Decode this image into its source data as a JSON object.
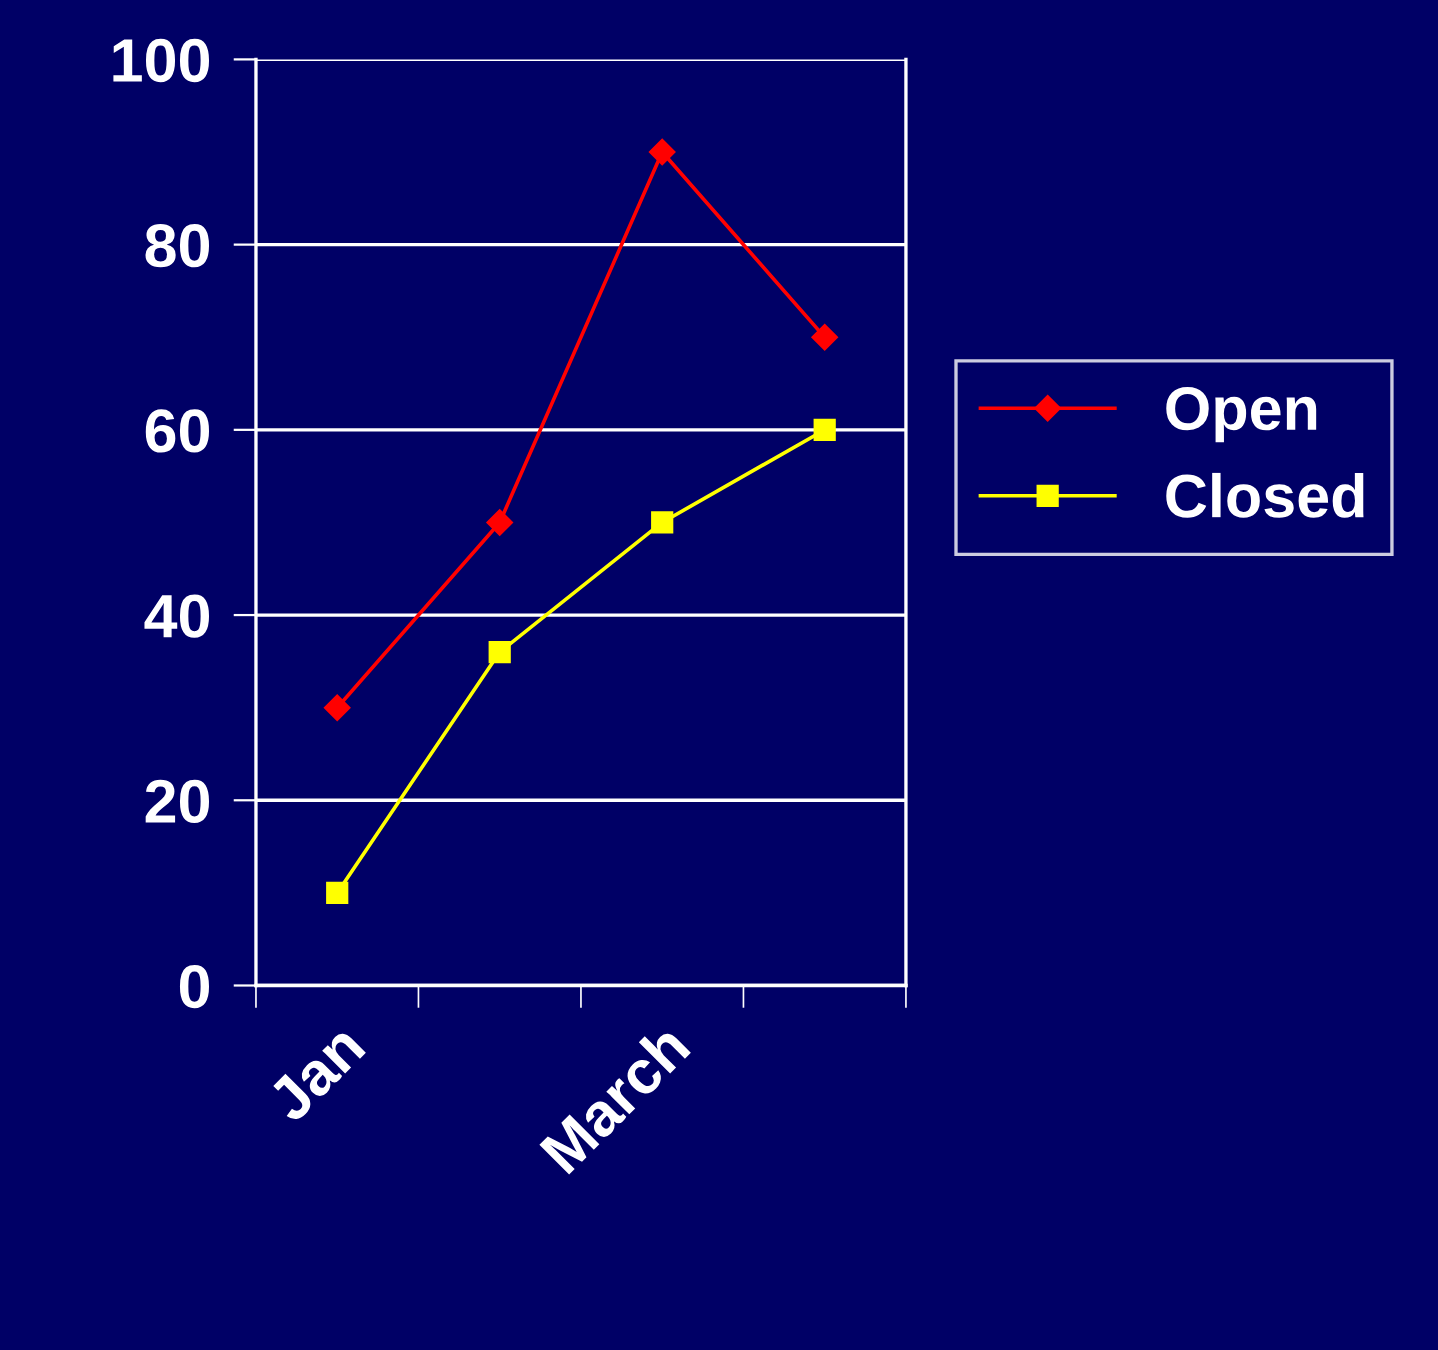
{
  "chart_data": {
    "type": "line",
    "categories": [
      "Jan",
      null,
      "March",
      null
    ],
    "series": [
      {
        "name": "Open",
        "color": "#ff0000",
        "marker": "diamond",
        "values": [
          30,
          50,
          90,
          70
        ]
      },
      {
        "name": "Closed",
        "color": "#ffff00",
        "marker": "square",
        "values": [
          10,
          36,
          50,
          60
        ]
      }
    ],
    "ylim": [
      0,
      100
    ],
    "yticks": [
      0,
      20,
      40,
      60,
      80,
      100
    ],
    "grid": "y",
    "legend": "right",
    "line_style": "solid"
  }
}
